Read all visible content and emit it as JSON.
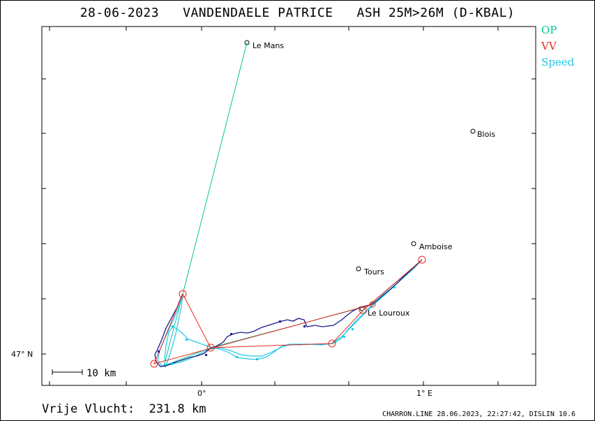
{
  "header": {
    "date": "28-06-2023",
    "pilot": "VANDENDAELE PATRICE",
    "aircraft": "ASH 25M>26M (D-KBAL)"
  },
  "legend": {
    "items": [
      {
        "label": "OP",
        "color": "#00c896"
      },
      {
        "label": "VV",
        "color": "#e8281e"
      },
      {
        "label": "Speed",
        "color": "#1ec8e6"
      }
    ]
  },
  "axes": {
    "lat_label": "47° N",
    "lon_label_0": "0°",
    "lon_label_1": "1° E"
  },
  "scale_bar": {
    "label": "10 km"
  },
  "places": [
    {
      "name": "Le Mans"
    },
    {
      "name": "Blois"
    },
    {
      "name": "Amboise"
    },
    {
      "name": "Tours"
    },
    {
      "name": "Le Louroux"
    }
  ],
  "footer": {
    "distance_label": "Vrije Vlucht:",
    "distance_value": "231.8 km",
    "source": "CHARRON.LINE 28.06.2023, 22:27:42, DISLIN 10.6"
  },
  "colors": {
    "track_dark": "#1a1a8c",
    "track_speed": "#1ec8e6",
    "op": "#00c896",
    "vv": "#e8281e"
  }
}
